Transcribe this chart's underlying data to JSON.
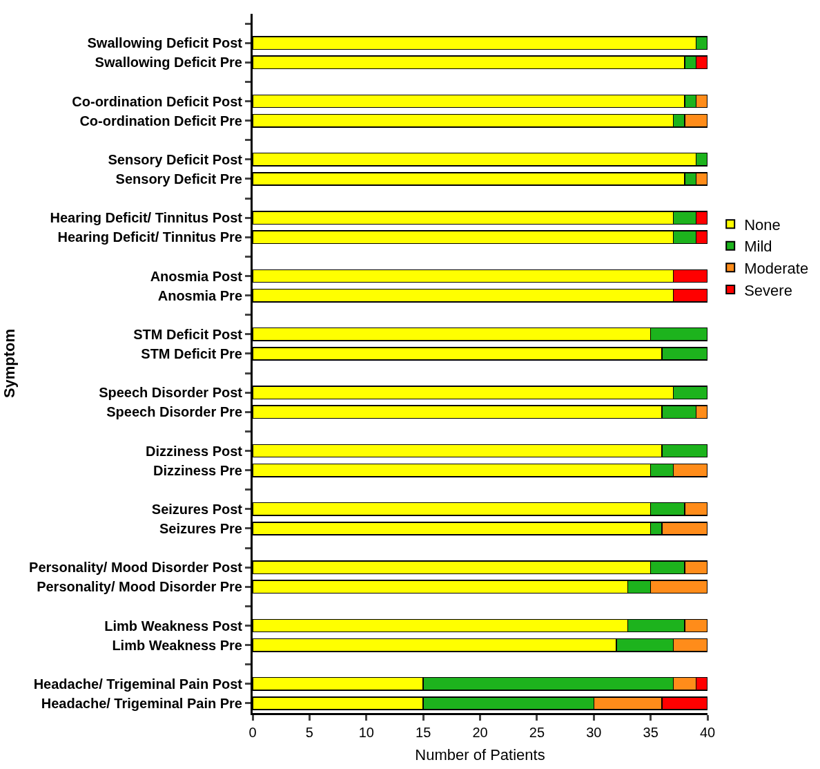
{
  "chart_data": {
    "type": "bar",
    "orientation": "horizontal",
    "stacked": true,
    "xlabel": "Number of Patients",
    "ylabel": "Symptom",
    "categories": [
      null,
      "Swallowing Deficit Post",
      "Swallowing Deficit Pre",
      null,
      "Co-ordination Deficit Post",
      "Co-ordination Deficit Pre",
      null,
      "Sensory Deficit Post",
      "Sensory Deficit Pre",
      null,
      "Hearing Deficit/ Tinnitus Post",
      "Hearing Deficit/ Tinnitus Pre",
      null,
      "Anosmia Post",
      "Anosmia Pre",
      null,
      "STM Deficit Post",
      "STM Deficit Pre",
      null,
      "Speech Disorder Post",
      "Speech Disorder Pre",
      null,
      "Dizziness Post",
      "Dizziness Pre",
      null,
      "Seizures Post",
      "Seizures Pre",
      null,
      "Personality/ Mood Disorder Post",
      "Personality/ Mood Disorder Pre",
      null,
      "Limb Weakness Post",
      "Limb Weakness Pre",
      null,
      "Headache/ Trigeminal Pain Post",
      "Headache/ Trigeminal Pain Pre"
    ],
    "series": [
      {
        "name": "None",
        "color": "#ffff00",
        "values": [
          null,
          39,
          38,
          null,
          38,
          37,
          null,
          39,
          38,
          null,
          37,
          37,
          null,
          37,
          37,
          null,
          35,
          36,
          null,
          37,
          36,
          null,
          36,
          35,
          null,
          35,
          35,
          null,
          35,
          33,
          null,
          33,
          32,
          null,
          15,
          15
        ]
      },
      {
        "name": "Mild",
        "color": "#1db31d",
        "values": [
          null,
          1,
          1,
          null,
          1,
          1,
          null,
          1,
          1,
          null,
          2,
          2,
          null,
          null,
          null,
          null,
          5,
          4,
          null,
          3,
          3,
          null,
          4,
          2,
          null,
          3,
          1,
          null,
          3,
          2,
          null,
          5,
          5,
          null,
          22,
          15
        ]
      },
      {
        "name": "Moderate",
        "color": "#ff8c1a",
        "values": [
          null,
          null,
          null,
          null,
          1,
          2,
          null,
          null,
          1,
          null,
          null,
          null,
          null,
          null,
          null,
          null,
          null,
          null,
          null,
          null,
          1,
          null,
          null,
          3,
          null,
          2,
          4,
          null,
          2,
          5,
          null,
          2,
          3,
          null,
          2,
          6
        ]
      },
      {
        "name": "Severe",
        "color": "#ff0000",
        "values": [
          null,
          null,
          1,
          null,
          null,
          null,
          null,
          null,
          null,
          null,
          1,
          1,
          null,
          3,
          3,
          null,
          null,
          null,
          null,
          null,
          null,
          null,
          null,
          null,
          null,
          null,
          null,
          null,
          null,
          null,
          null,
          null,
          null,
          null,
          1,
          4
        ]
      }
    ],
    "xlim": [
      0,
      40
    ],
    "xticks": [
      0,
      5,
      10,
      15,
      20,
      25,
      30,
      35,
      40
    ],
    "legend": "right"
  }
}
